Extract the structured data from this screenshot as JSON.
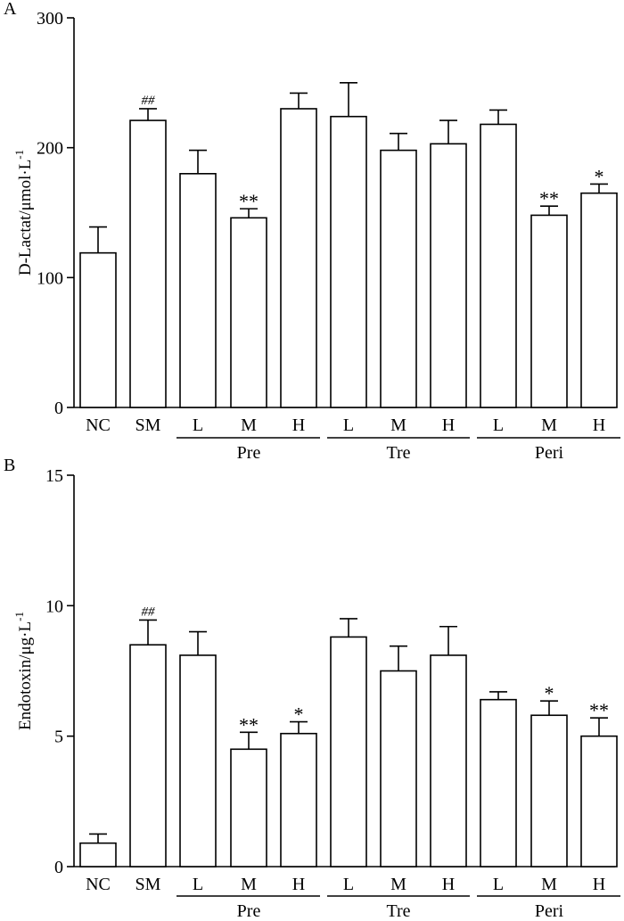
{
  "chart_data": [
    {
      "type": "bar",
      "panel_label": "A",
      "ylabel_main": "D-Lactat/μmol·L",
      "ylabel_sup": "-1",
      "ylim": [
        0,
        300
      ],
      "yticks": [
        "0",
        "100",
        "200",
        "300"
      ],
      "categories": [
        "NC",
        "SM",
        "L",
        "M",
        "H",
        "L",
        "M",
        "H",
        "L",
        "M",
        "H"
      ],
      "groups": [
        {
          "label": "Pre",
          "start": 2,
          "end": 4
        },
        {
          "label": "Tre",
          "start": 5,
          "end": 7
        },
        {
          "label": "Peri",
          "start": 8,
          "end": 10
        }
      ],
      "values": [
        119,
        221,
        180,
        146,
        230,
        224,
        198,
        203,
        218,
        148,
        165
      ],
      "errors": [
        20,
        9,
        18,
        7,
        12,
        26,
        13,
        18,
        11,
        7,
        7
      ],
      "annotations": [
        "",
        "##",
        "",
        "**",
        "",
        "",
        "",
        "",
        "",
        "**",
        "*"
      ]
    },
    {
      "type": "bar",
      "panel_label": "B",
      "ylabel_main": "Endotoxin/μg·L",
      "ylabel_sup": "-1",
      "ylim": [
        0,
        15
      ],
      "yticks": [
        "0",
        "5",
        "10",
        "15"
      ],
      "categories": [
        "NC",
        "SM",
        "L",
        "M",
        "H",
        "L",
        "M",
        "H",
        "L",
        "M",
        "H"
      ],
      "groups": [
        {
          "label": "Pre",
          "start": 2,
          "end": 4
        },
        {
          "label": "Tre",
          "start": 5,
          "end": 7
        },
        {
          "label": "Peri",
          "start": 8,
          "end": 10
        }
      ],
      "values": [
        0.9,
        8.5,
        8.1,
        4.5,
        5.1,
        8.8,
        7.5,
        8.1,
        6.4,
        5.8,
        5.0
      ],
      "errors": [
        0.35,
        0.95,
        0.9,
        0.65,
        0.45,
        0.7,
        0.95,
        1.1,
        0.3,
        0.55,
        0.7
      ],
      "annotations": [
        "",
        "##",
        "",
        "**",
        "*",
        "",
        "",
        "",
        "",
        "*",
        "**"
      ]
    }
  ]
}
